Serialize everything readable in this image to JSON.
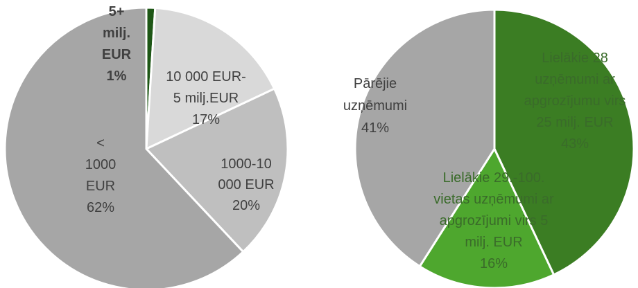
{
  "chart_data": [
    {
      "type": "pie",
      "categories": [
        [
          "5+",
          "milj.",
          "EUR"
        ],
        [
          "10 000 EUR-",
          "5 milj.EUR"
        ],
        [
          "1000-10",
          "000 EUR"
        ],
        [
          "<",
          "1000",
          "EUR"
        ]
      ],
      "values": [
        1,
        17,
        20,
        62
      ],
      "value_labels": [
        "1%",
        "17%",
        "20%",
        "62%"
      ],
      "colors": [
        "#1e5716",
        "#d9d9d9",
        "#bfbfbf",
        "#a6a6a6"
      ]
    },
    {
      "type": "pie",
      "categories": [
        [
          "Lielākie 28",
          "uzņēmumi ar",
          "apgrozījumu virs",
          "25 milj. EUR"
        ],
        [
          "Lielākie 29.-100.",
          "vietas uzņēmumi ar",
          "apgrozījumi virs 5",
          "milj. EUR"
        ],
        [
          "Pārējie",
          "uzņēmumi"
        ]
      ],
      "values": [
        43,
        16,
        41
      ],
      "value_labels": [
        "43%",
        "16%",
        "41%"
      ],
      "colors": [
        "#3b7d23",
        "#4ea72e",
        "#a6a6a6"
      ]
    }
  ]
}
